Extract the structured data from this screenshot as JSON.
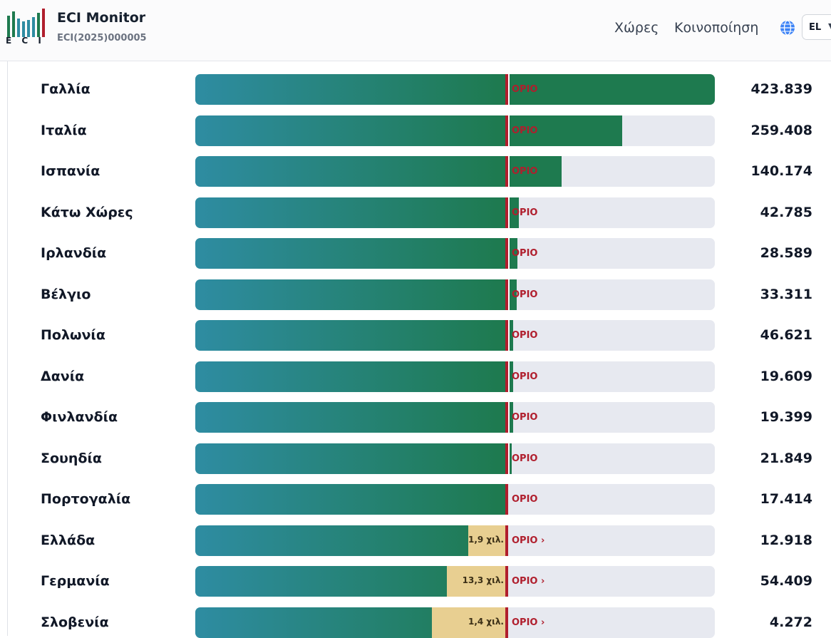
{
  "header": {
    "logo_text": "E C I",
    "title": "ECI Monitor",
    "subtitle": "ECI(2025)000005",
    "nav_countries": "Χώρες",
    "nav_share": "Κοινοποίηση",
    "lang": "EL"
  },
  "colors": {
    "bar_gradient_start": "#2e8ca2",
    "bar_gradient_end": "#1e7a4f",
    "track": "#e7e9f0",
    "threshold": "#b01e2d",
    "gap": "#e8cf91"
  },
  "rows": [
    {
      "country": "Γαλλία",
      "progress_pct": 100,
      "threshold_label": "ΟΡΙΟ",
      "count": "423.839",
      "met": true
    },
    {
      "country": "Ιταλία",
      "progress_pct": 82.2,
      "threshold_label": "ΟΡΙΟ",
      "count": "259.408",
      "met": true
    },
    {
      "country": "Ισπανία",
      "progress_pct": 70.5,
      "threshold_label": "ΟΡΙΟ",
      "count": "140.174",
      "met": true
    },
    {
      "country": "Κάτω Χώρες",
      "progress_pct": 62.3,
      "threshold_label": "ΟΡΙΟ",
      "count": "42.785",
      "met": true
    },
    {
      "country": "Ιρλανδία",
      "progress_pct": 62.0,
      "threshold_label": "ΟΡΙΟ",
      "count": "28.589",
      "met": true
    },
    {
      "country": "Βέλγιο",
      "progress_pct": 61.9,
      "threshold_label": "ΟΡΙΟ",
      "count": "33.311",
      "met": true
    },
    {
      "country": "Πολωνία",
      "progress_pct": 61.2,
      "threshold_label": "ΟΡΙΟ",
      "count": "46.621",
      "met": true
    },
    {
      "country": "Δανία",
      "progress_pct": 61.2,
      "threshold_label": "ΟΡΙΟ",
      "count": "19.609",
      "met": true
    },
    {
      "country": "Φινλανδία",
      "progress_pct": 61.2,
      "threshold_label": "ΟΡΙΟ",
      "count": "19.399",
      "met": true
    },
    {
      "country": "Σουηδία",
      "progress_pct": 60.9,
      "threshold_label": "ΟΡΙΟ",
      "count": "21.849",
      "met": true
    },
    {
      "country": "Πορτογαλία",
      "progress_pct": 60.0,
      "threshold_label": "ΟΡΙΟ",
      "count": "17.414",
      "met": true
    },
    {
      "country": "Ελλάδα",
      "progress_pct": 52.5,
      "threshold_label": "ΟΡΙΟ ›",
      "count": "12.918",
      "met": false,
      "gap_label": "1,9 χιλ."
    },
    {
      "country": "Γερμανία",
      "progress_pct": 48.4,
      "threshold_label": "ΟΡΙΟ ›",
      "count": "54.409",
      "met": false,
      "gap_label": "13,3 χιλ."
    },
    {
      "country": "Σλοβενία",
      "progress_pct": 45.5,
      "threshold_label": "ΟΡΙΟ ›",
      "count": "4.272",
      "met": false,
      "gap_label": "1,4 χιλ."
    }
  ]
}
